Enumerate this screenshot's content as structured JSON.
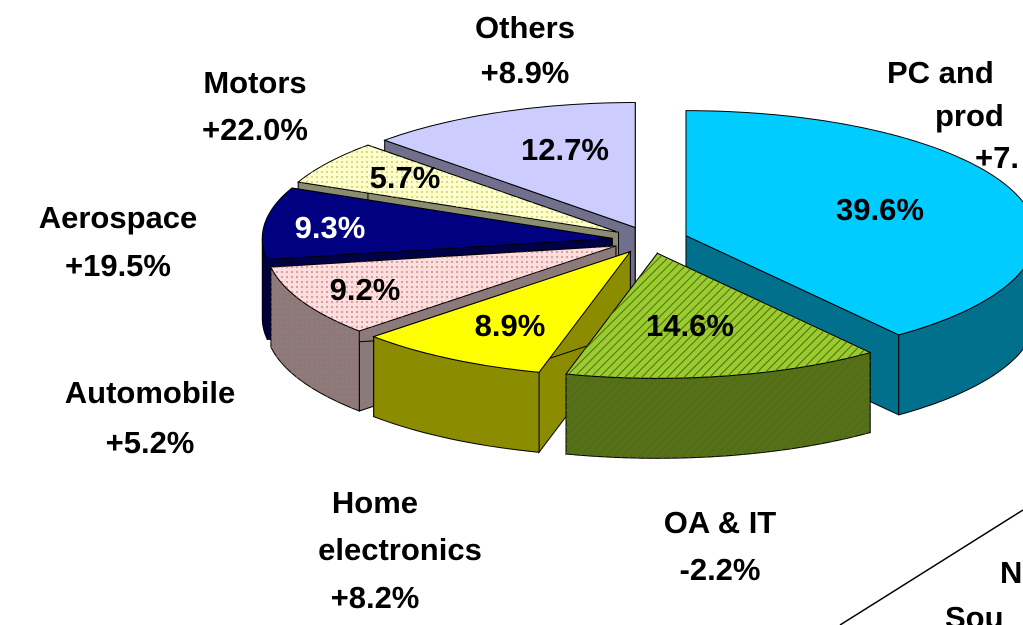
{
  "chart_data": {
    "type": "pie3d",
    "categories": [
      [
        "PC and",
        "prod",
        "+7."
      ],
      [
        "OA & IT",
        "-2.2%"
      ],
      [
        "Home",
        "electronics",
        "+8.2%"
      ],
      [
        "Automobile",
        "+5.2%"
      ],
      [
        "Aerospace",
        "+19.5%"
      ],
      [
        "Motors",
        "+22.0%"
      ],
      [
        "Others",
        "+8.9%"
      ]
    ],
    "values": [
      39.6,
      14.6,
      8.9,
      9.2,
      9.3,
      5.7,
      12.7
    ],
    "value_labels": [
      "39.6%",
      "14.6%",
      "8.9%",
      "9.2%",
      "9.3%",
      "5.7%",
      "12.7%"
    ],
    "colors": [
      "#00ccff",
      "#99cc33",
      "#ffff00",
      "#ffdddd",
      "#000080",
      "#ffffcc",
      "#ccccff"
    ],
    "note": [
      "N",
      "Sou"
    ]
  }
}
